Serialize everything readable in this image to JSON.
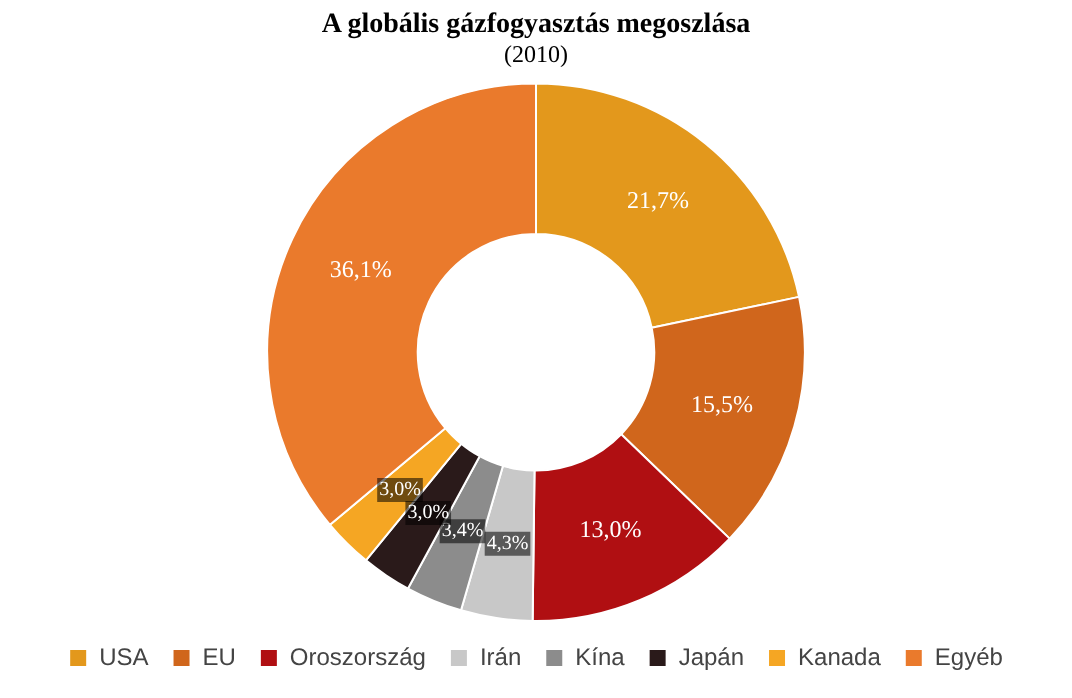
{
  "chart_data": {
    "type": "donut",
    "title": "A globális gázfogyasztás megoszlása",
    "subtitle": "(2010)",
    "categories": [
      "USA",
      "EU",
      "Oroszország",
      "Irán",
      "Kína",
      "Japán",
      "Kanada",
      "Egyéb"
    ],
    "values": [
      21.7,
      15.5,
      13.0,
      4.3,
      3.4,
      3.0,
      3.0,
      36.1
    ],
    "colors": [
      "#e3981c",
      "#d0661c",
      "#b00f12",
      "#c8c8c8",
      "#8c8c8c",
      "#2a1a1a",
      "#f5a623",
      "#ea7a2c"
    ],
    "value_labels": [
      "21,7%",
      "15,5%",
      "13,0%",
      "4,3%",
      "3,4%",
      "3,0%",
      "3,0%",
      "36,1%"
    ],
    "legend": "bottom"
  }
}
